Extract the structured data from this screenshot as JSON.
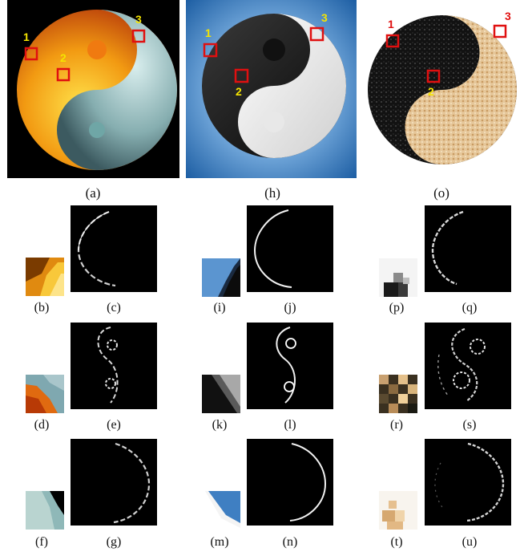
{
  "figure": {
    "main_panels": [
      {
        "id": "a",
        "caption": "(a)",
        "markers": [
          "1",
          "2",
          "3"
        ]
      },
      {
        "id": "h",
        "caption": "(h)",
        "markers": [
          "1",
          "2",
          "3"
        ]
      },
      {
        "id": "o",
        "caption": "(o)",
        "markers": [
          "1",
          "2",
          "3"
        ]
      }
    ],
    "rows": [
      {
        "patch_captions": [
          "(b)",
          "(i)",
          "(p)"
        ],
        "edge_captions": [
          "(c)",
          "(j)",
          "(q)"
        ]
      },
      {
        "patch_captions": [
          "(d)",
          "(k)",
          "(r)"
        ],
        "edge_captions": [
          "(e)",
          "(l)",
          "(s)"
        ]
      },
      {
        "patch_captions": [
          "(f)",
          "(m)",
          "(t)"
        ],
        "edge_captions": [
          "(g)",
          "(n)",
          "(u)"
        ]
      }
    ]
  },
  "colors": {
    "marker_box": "#e01010",
    "marker_label_ab": "#f4e400",
    "marker_label_o": "#e01010"
  }
}
